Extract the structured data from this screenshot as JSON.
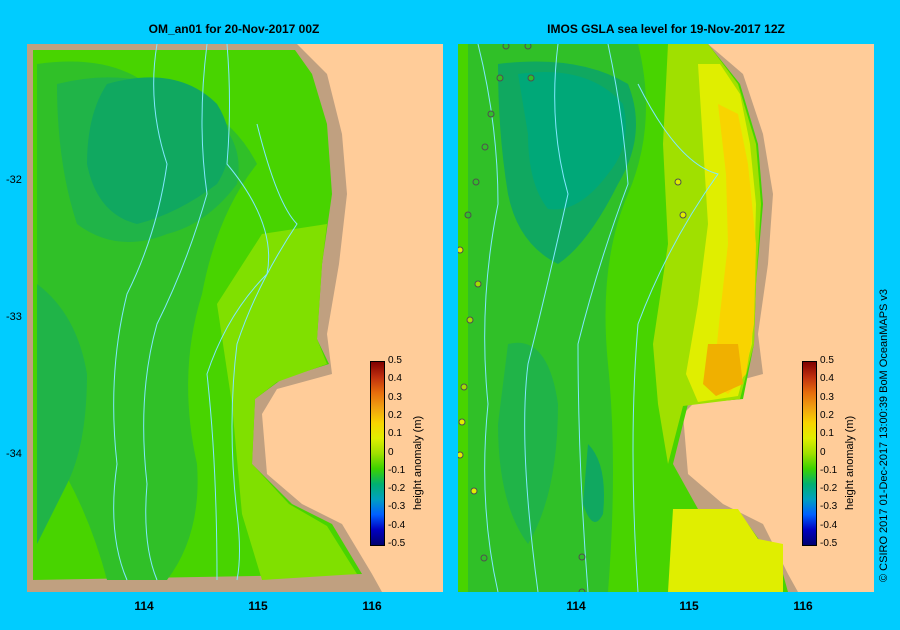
{
  "left_panel": {
    "title": "OM_an01  for 20-Nov-2017 00Z"
  },
  "right_panel": {
    "title": "IMOS GSLA sea level  for 19-Nov-2017 12Z"
  },
  "y_axis": {
    "ticks": [
      "-32",
      "-33",
      "-34"
    ]
  },
  "x_axis": {
    "left_ticks": [
      "114",
      "115",
      "116"
    ],
    "right_ticks": [
      "114",
      "115",
      "116"
    ]
  },
  "colorbar": {
    "title": "height anomaly (m)",
    "labels": [
      "0.5",
      "0.4",
      "0.3",
      "0.2",
      "0.1",
      "0",
      "-0.1",
      "-0.2",
      "-0.3",
      "-0.4",
      "-0.5"
    ],
    "colors": [
      "#800000",
      "#c0300e",
      "#e66c0c",
      "#f0a010",
      "#f8d400",
      "#e0ee00",
      "#a0e000",
      "#3cd200",
      "#00b070",
      "#00a0c0",
      "#0060ff",
      "#0000c0",
      "#000070"
    ]
  },
  "credit": "© CSIRO 2017   01-Dec-2017 13:00:39 BoM OceanMAPS v3",
  "colors": {
    "background": "#00ccff",
    "land": "#ffcc99",
    "shelf": "#c0a080",
    "contour": "#80e8ff"
  }
}
